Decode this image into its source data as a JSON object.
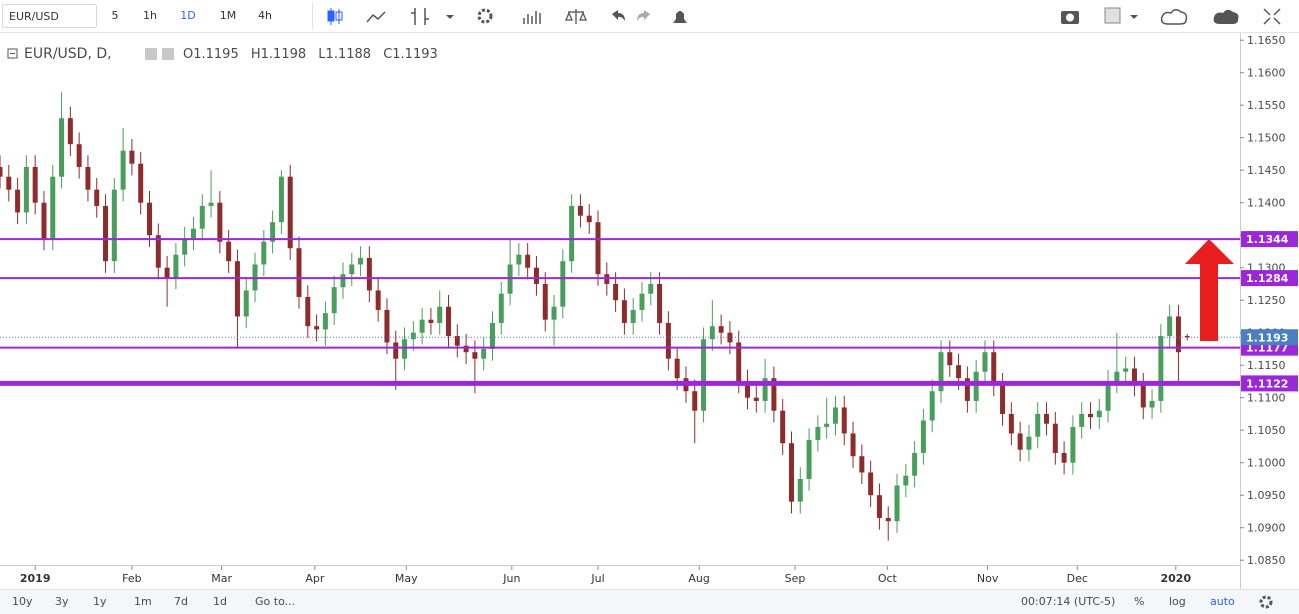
{
  "toolbar": {
    "symbol": "EUR/USD",
    "intervals": [
      "5",
      "1h",
      "1D",
      "1M",
      "4h"
    ],
    "active_interval": 2
  },
  "chart_data": {
    "type": "candlestick",
    "title": "EUR/USD, D,",
    "ohlc_labels": [
      "O",
      "H",
      "L",
      "C"
    ],
    "up_color": "#4a9e5c",
    "down_color": "#8e2c2c",
    "open": [
      1.1455,
      1.144,
      1.142,
      1.1385,
      1.1455,
      1.14,
      1.1345,
      1.144,
      1.153,
      1.149,
      1.1455,
      1.142,
      1.1395,
      1.131,
      1.142,
      1.148,
      1.146,
      1.14,
      1.135,
      1.13,
      1.1285,
      1.132,
      1.1345,
      1.136,
      1.1395,
      1.14,
      1.134,
      1.131,
      1.1225,
      1.1265,
      1.1305,
      1.134,
      1.137,
      1.144,
      1.133,
      1.1255,
      1.121,
      1.1205,
      1.123,
      1.127,
      1.129,
      1.1305,
      1.1315,
      1.1265,
      1.1235,
      1.1185,
      1.116,
      1.119,
      1.12,
      1.122,
      1.1215,
      1.124,
      1.1195,
      1.118,
      1.117,
      1.116,
      1.1175,
      1.1215,
      1.126,
      1.1305,
      1.132,
      1.13,
      1.1275,
      1.122,
      1.124,
      1.131,
      1.1395,
      1.138,
      1.137,
      1.129,
      1.1275,
      1.125,
      1.1215,
      1.1235,
      1.126,
      1.1275,
      1.1215,
      1.116,
      1.113,
      1.111,
      1.108,
      1.119,
      1.121,
      1.12,
      1.1185,
      1.1125,
      1.11,
      1.1095,
      1.113,
      1.108,
      1.103,
      1.094,
      1.0975,
      1.1035,
      1.1055,
      1.106,
      1.1085,
      1.1045,
      1.101,
      1.0985,
      1.095,
      1.0915,
      1.091,
      1.0965,
      1.098,
      1.1015,
      1.1065,
      1.111,
      1.117,
      1.115,
      1.113,
      1.1095,
      1.114,
      1.117,
      1.112,
      1.1075,
      1.1045,
      1.102,
      1.104,
      1.1075,
      1.106,
      1.1015,
      1.1,
      1.1055,
      1.1075,
      1.107,
      1.108,
      1.1125,
      1.114,
      1.1145,
      1.112,
      1.1085,
      1.1095,
      1.1195,
      1.1225,
      1.1195
    ],
    "high": [
      1.1473,
      1.1458,
      1.1438,
      1.1473,
      1.1473,
      1.1418,
      1.1458,
      1.157,
      1.1548,
      1.1508,
      1.1473,
      1.1438,
      1.1413,
      1.1438,
      1.1515,
      1.1498,
      1.1478,
      1.1418,
      1.1368,
      1.1318,
      1.1338,
      1.1363,
      1.1378,
      1.1413,
      1.145,
      1.1418,
      1.1358,
      1.1328,
      1.1283,
      1.1323,
      1.1358,
      1.1388,
      1.145,
      1.1458,
      1.1348,
      1.1273,
      1.1228,
      1.1248,
      1.1288,
      1.1308,
      1.1323,
      1.1333,
      1.1333,
      1.1283,
      1.1253,
      1.1203,
      1.1208,
      1.1218,
      1.1238,
      1.1238,
      1.1265,
      1.1258,
      1.1213,
      1.1198,
      1.1188,
      1.1193,
      1.1233,
      1.1278,
      1.1345,
      1.1338,
      1.1338,
      1.1318,
      1.1293,
      1.1258,
      1.1328,
      1.1413,
      1.1413,
      1.1398,
      1.1388,
      1.1308,
      1.1293,
      1.1268,
      1.1253,
      1.1278,
      1.1293,
      1.1293,
      1.1233,
      1.1178,
      1.1148,
      1.1128,
      1.1208,
      1.125,
      1.1228,
      1.1218,
      1.1203,
      1.1143,
      1.1118,
      1.116,
      1.1148,
      1.1098,
      1.1048,
      1.0993,
      1.1053,
      1.1073,
      1.11,
      1.1103,
      1.1103,
      1.1063,
      1.1028,
      1.1003,
      1.0968,
      1.0933,
      1.0983,
      1.0998,
      1.1033,
      1.1083,
      1.1128,
      1.1188,
      1.1188,
      1.1168,
      1.1148,
      1.1158,
      1.1188,
      1.1188,
      1.1138,
      1.1093,
      1.1063,
      1.1058,
      1.1093,
      1.1093,
      1.1078,
      1.1033,
      1.1073,
      1.1093,
      1.1093,
      1.1098,
      1.1143,
      1.12,
      1.1163,
      1.1163,
      1.1138,
      1.1113,
      1.1213,
      1.1243,
      1.1243,
      1.1198
    ],
    "low": [
      1.1422,
      1.1402,
      1.1367,
      1.1367,
      1.1382,
      1.1327,
      1.1327,
      1.1422,
      1.1472,
      1.1437,
      1.1402,
      1.1377,
      1.1292,
      1.1292,
      1.1402,
      1.1442,
      1.1382,
      1.1332,
      1.1282,
      1.124,
      1.1267,
      1.1302,
      1.1327,
      1.1342,
      1.1377,
      1.1322,
      1.1292,
      1.1177,
      1.1207,
      1.1247,
      1.1287,
      1.1322,
      1.1352,
      1.1312,
      1.1237,
      1.1192,
      1.1187,
      1.118,
      1.1212,
      1.1252,
      1.1272,
      1.1287,
      1.1247,
      1.1217,
      1.1167,
      1.1112,
      1.1142,
      1.1172,
      1.1182,
      1.1197,
      1.1197,
      1.1177,
      1.1162,
      1.1152,
      1.1107,
      1.1142,
      1.1157,
      1.1197,
      1.1242,
      1.1287,
      1.1282,
      1.1257,
      1.1202,
      1.118,
      1.1222,
      1.1292,
      1.1362,
      1.1352,
      1.1272,
      1.1257,
      1.1232,
      1.1197,
      1.1197,
      1.1217,
      1.1242,
      1.1197,
      1.1142,
      1.1112,
      1.1092,
      1.103,
      1.1062,
      1.1172,
      1.1182,
      1.1167,
      1.1107,
      1.1082,
      1.1077,
      1.1077,
      1.1062,
      1.1012,
      1.0922,
      1.0922,
      1.0957,
      1.1017,
      1.1037,
      1.1042,
      1.1027,
      1.0992,
      1.0967,
      1.0932,
      1.0897,
      1.088,
      1.0892,
      1.0947,
      1.0962,
      1.0997,
      1.1047,
      1.1092,
      1.1132,
      1.1112,
      1.1077,
      1.1077,
      1.1122,
      1.1102,
      1.1057,
      1.1027,
      1.1002,
      1.1002,
      1.1022,
      1.1042,
      1.0997,
      1.0982,
      1.0982,
      1.1037,
      1.1052,
      1.1052,
      1.1062,
      1.1107,
      1.1122,
      1.1102,
      1.1067,
      1.1067,
      1.1077,
      1.1177,
      1.1125,
      1.1188
    ],
    "close": [
      1.144,
      1.142,
      1.1385,
      1.1455,
      1.14,
      1.1345,
      1.144,
      1.153,
      1.149,
      1.1455,
      1.142,
      1.1395,
      1.131,
      1.142,
      1.148,
      1.146,
      1.14,
      1.135,
      1.13,
      1.1285,
      1.132,
      1.1345,
      1.136,
      1.1395,
      1.14,
      1.134,
      1.131,
      1.1225,
      1.1265,
      1.1305,
      1.134,
      1.137,
      1.144,
      1.133,
      1.1255,
      1.121,
      1.1205,
      1.123,
      1.127,
      1.129,
      1.1305,
      1.1315,
      1.1265,
      1.1235,
      1.1185,
      1.116,
      1.119,
      1.12,
      1.122,
      1.1215,
      1.124,
      1.1195,
      1.118,
      1.117,
      1.116,
      1.1175,
      1.1215,
      1.126,
      1.1305,
      1.132,
      1.13,
      1.1275,
      1.122,
      1.124,
      1.131,
      1.1395,
      1.138,
      1.137,
      1.129,
      1.1275,
      1.125,
      1.1215,
      1.1235,
      1.126,
      1.1275,
      1.1215,
      1.116,
      1.113,
      1.111,
      1.108,
      1.119,
      1.121,
      1.12,
      1.1185,
      1.1125,
      1.11,
      1.1095,
      1.113,
      1.108,
      1.103,
      1.094,
      1.0975,
      1.1035,
      1.1055,
      1.106,
      1.1085,
      1.1045,
      1.101,
      1.0985,
      1.095,
      1.0915,
      1.091,
      1.0965,
      1.098,
      1.1015,
      1.1065,
      1.111,
      1.117,
      1.115,
      1.113,
      1.1095,
      1.114,
      1.117,
      1.112,
      1.1075,
      1.1045,
      1.102,
      1.104,
      1.1075,
      1.106,
      1.1015,
      1.1,
      1.1055,
      1.1075,
      1.107,
      1.108,
      1.1125,
      1.114,
      1.1145,
      1.112,
      1.1085,
      1.1095,
      1.1195,
      1.1225,
      1.117,
      1.1193
    ],
    "xlim": [
      0,
      141
    ],
    "xticks": [
      {
        "value": 4,
        "label": "2019"
      },
      {
        "value": 15,
        "label": "Feb"
      },
      {
        "value": 25.2,
        "label": "Mar"
      },
      {
        "value": 35.8,
        "label": "Apr"
      },
      {
        "value": 46.2,
        "label": "May"
      },
      {
        "value": 58.2,
        "label": "Jun"
      },
      {
        "value": 68,
        "label": "Jul"
      },
      {
        "value": 79.5,
        "label": "Aug"
      },
      {
        "value": 90.4,
        "label": "Sep"
      },
      {
        "value": 100.9,
        "label": "Oct"
      },
      {
        "value": 112.3,
        "label": "Nov"
      },
      {
        "value": 122.5,
        "label": "Dec"
      },
      {
        "value": 133.7,
        "label": "2020"
      }
    ],
    "ylim": [
      1.0838,
      1.1658
    ],
    "yticks": [
      {
        "value": 1.085,
        "label": "1.0850"
      },
      {
        "value": 1.09,
        "label": "1.0900"
      },
      {
        "value": 1.095,
        "label": "1.0950"
      },
      {
        "value": 1.1,
        "label": "1.1000"
      },
      {
        "value": 1.105,
        "label": "1.1050"
      },
      {
        "value": 1.11,
        "label": "1.1100"
      },
      {
        "value": 1.115,
        "label": "1.1150"
      },
      {
        "value": 1.12,
        "label": "1.1200"
      },
      {
        "value": 1.125,
        "label": "1.1250"
      },
      {
        "value": 1.13,
        "label": "1.1300"
      },
      {
        "value": 1.135,
        "label": "1.1350"
      },
      {
        "value": 1.14,
        "label": "1.1400"
      },
      {
        "value": 1.145,
        "label": "1.1450"
      },
      {
        "value": 1.15,
        "label": "1.1500"
      },
      {
        "value": 1.155,
        "label": "1.1550"
      },
      {
        "value": 1.16,
        "label": "1.1600"
      },
      {
        "value": 1.165,
        "label": "1.1650"
      }
    ],
    "grid": false,
    "levels": [
      {
        "value": 1.1344,
        "thick": false
      },
      {
        "value": 1.1284,
        "thick": false
      },
      {
        "value": 1.1177,
        "thick": false
      },
      {
        "value": 1.1122,
        "thick": true
      }
    ],
    "level_color": "#9c27d8",
    "last_price_color": "#4a7fc1"
  },
  "bottom_bar": {
    "ranges": [
      "10y",
      "3y",
      "1y",
      "1m",
      "7d",
      "1d"
    ],
    "goto": "Go to...",
    "clock": "00:07:14 (UTC-5)",
    "options": [
      "%",
      "log",
      "auto"
    ]
  }
}
